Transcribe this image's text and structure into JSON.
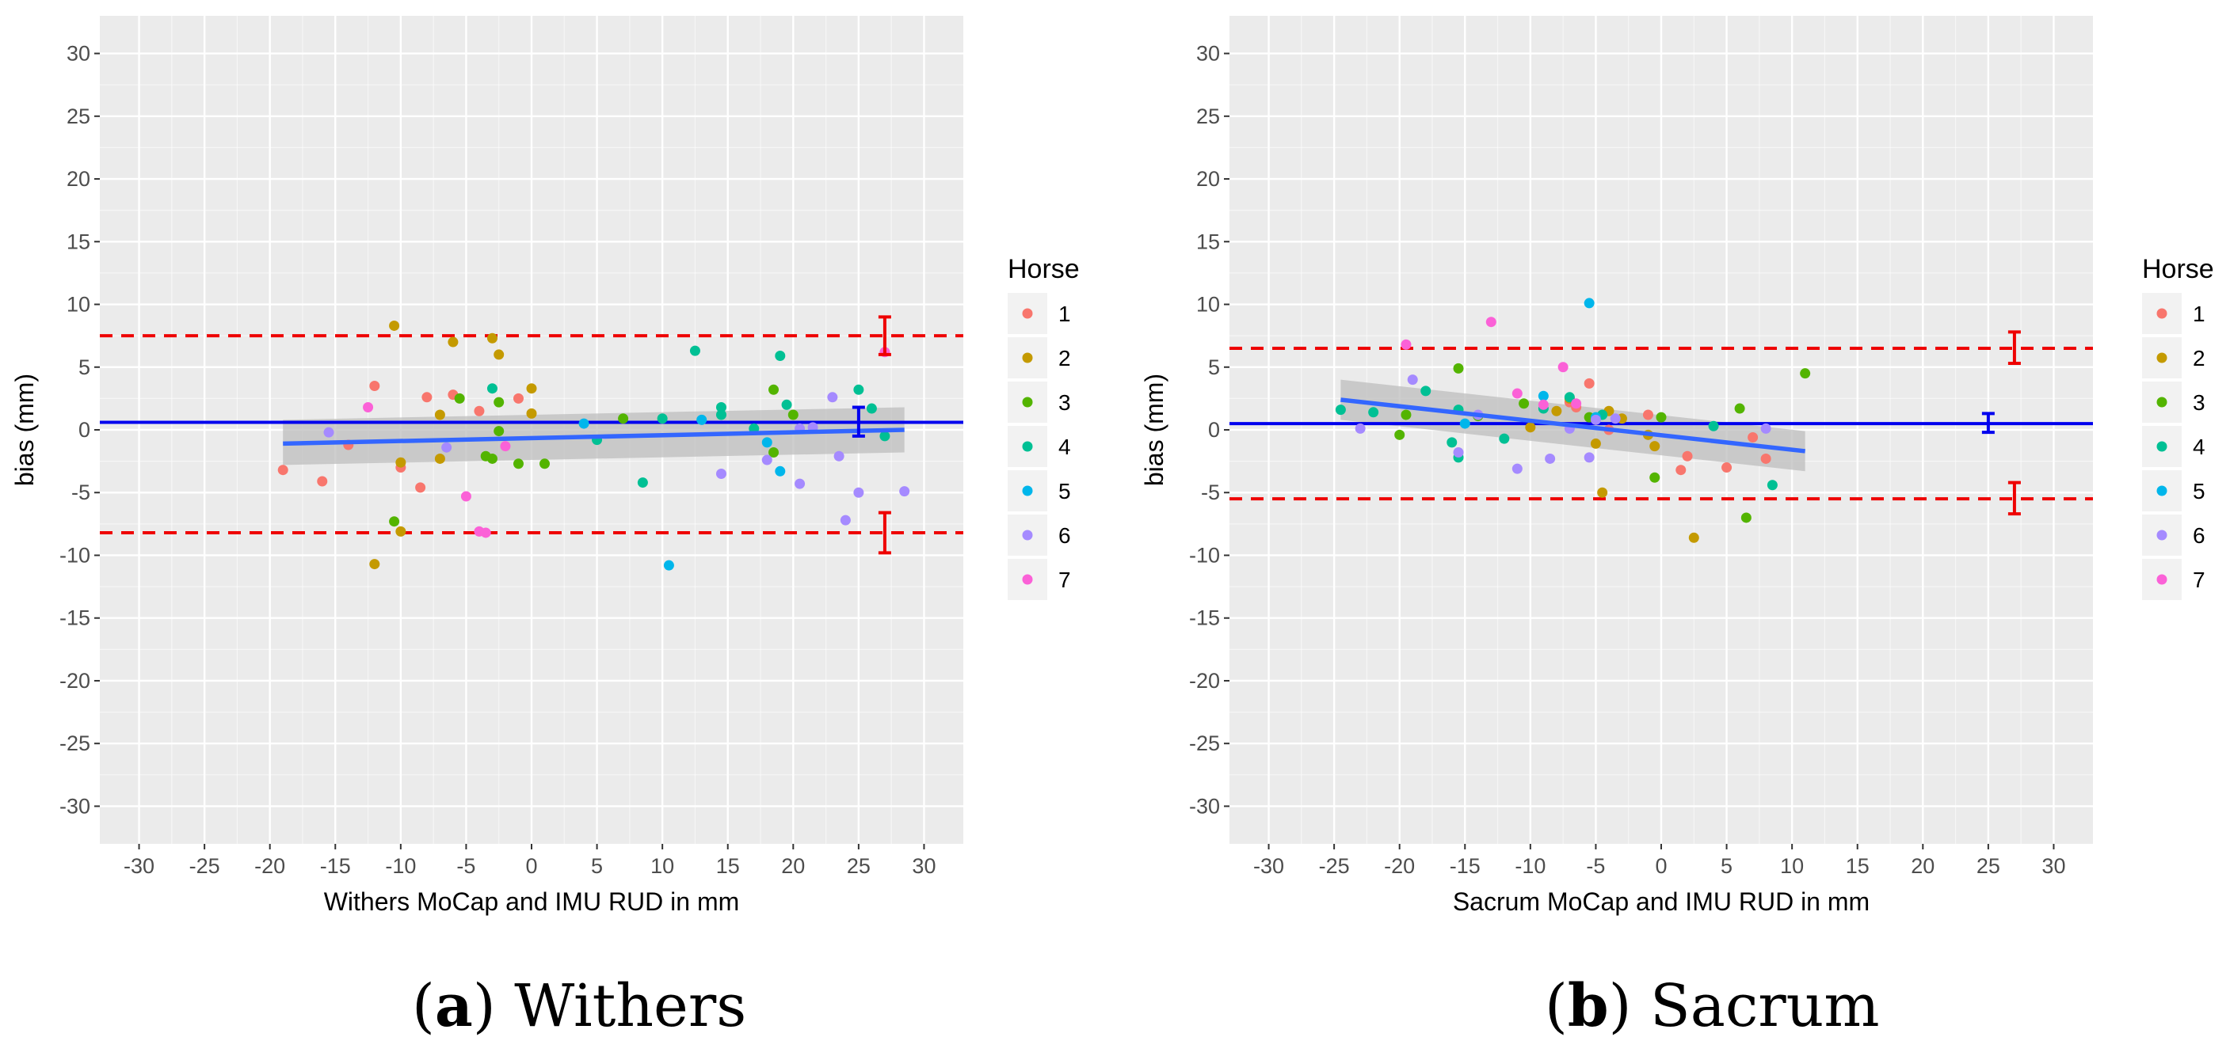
{
  "colors": {
    "panel_bg": "#ebebeb",
    "grid_major": "#ffffff",
    "bias_line": "#0000ee",
    "loa_line": "#ee0000",
    "regression_line": "#3366ff",
    "confidence_band": "#bdbdbd",
    "horse_palette": [
      "#F8766D",
      "#C49A00",
      "#53B400",
      "#00C094",
      "#00B6EB",
      "#A58AFF",
      "#FB61D7"
    ]
  },
  "captions": [
    {
      "letter": "a",
      "text": "Withers"
    },
    {
      "letter": "b",
      "text": "Sacrum"
    }
  ],
  "chart_data": [
    {
      "type": "scatter",
      "title": "",
      "xlabel": "Withers MoCap and IMU RUD in mm",
      "ylabel": "bias (mm)",
      "xlim": [
        -33,
        33
      ],
      "ylim": [
        -33,
        33
      ],
      "x_ticks": [
        -30,
        -25,
        -20,
        -15,
        -10,
        -5,
        0,
        5,
        10,
        15,
        20,
        25,
        30
      ],
      "y_ticks": [
        -30,
        -25,
        -20,
        -15,
        -10,
        -5,
        0,
        5,
        10,
        15,
        20,
        25,
        30
      ],
      "grid": true,
      "legend": {
        "title": "Horse",
        "position": "right",
        "entries": [
          "1",
          "2",
          "3",
          "4",
          "5",
          "6",
          "7"
        ]
      },
      "bias": 0.6,
      "bias_ci": [
        -0.5,
        1.8
      ],
      "loa_upper": 7.5,
      "loa_upper_ci": [
        6.0,
        9.0
      ],
      "loa_lower": -8.2,
      "loa_lower_ci": [
        -9.8,
        -6.6
      ],
      "ci_marker_x": [
        25,
        27
      ],
      "regression": {
        "x": [
          -19,
          28.5
        ],
        "y": [
          -1.1,
          0.0
        ],
        "band_upper": [
          0.8,
          1.8
        ],
        "band_lower": [
          -2.8,
          -1.8
        ]
      },
      "series": [
        {
          "name": "1",
          "points": [
            [
              -19,
              -3.2
            ],
            [
              -16,
              -4.1
            ],
            [
              -14,
              -1.2
            ],
            [
              -12,
              3.5
            ],
            [
              -10,
              -3.0
            ],
            [
              -8.5,
              -4.6
            ],
            [
              -8,
              2.6
            ],
            [
              -6,
              2.8
            ],
            [
              -4,
              1.5
            ],
            [
              -1,
              2.5
            ]
          ]
        },
        {
          "name": "2",
          "points": [
            [
              -12,
              -10.7
            ],
            [
              -10.5,
              8.3
            ],
            [
              -10,
              -8.1
            ],
            [
              -10,
              -2.6
            ],
            [
              -7,
              -2.3
            ],
            [
              -7,
              1.2
            ],
            [
              -6,
              7.0
            ],
            [
              -3,
              7.3
            ],
            [
              -2.5,
              6.0
            ],
            [
              0,
              1.3
            ],
            [
              0,
              3.3
            ]
          ]
        },
        {
          "name": "3",
          "points": [
            [
              -10.5,
              -7.3
            ],
            [
              -5.5,
              2.5
            ],
            [
              -3.5,
              -2.1
            ],
            [
              -3,
              -2.3
            ],
            [
              -2.5,
              2.2
            ],
            [
              -2.5,
              -0.1
            ],
            [
              -1,
              -2.7
            ],
            [
              1,
              -2.7
            ],
            [
              7,
              0.9
            ],
            [
              18.5,
              3.2
            ],
            [
              18.5,
              -1.8
            ],
            [
              20,
              1.2
            ]
          ]
        },
        {
          "name": "4",
          "points": [
            [
              -3,
              3.3
            ],
            [
              5,
              -0.8
            ],
            [
              8.5,
              -4.2
            ],
            [
              10,
              0.9
            ],
            [
              12.5,
              6.3
            ],
            [
              14.5,
              1.8
            ],
            [
              14.5,
              1.2
            ],
            [
              17,
              0.1
            ],
            [
              19,
              5.9
            ],
            [
              19.5,
              2.0
            ],
            [
              25,
              3.2
            ],
            [
              26,
              1.7
            ],
            [
              27,
              -0.5
            ]
          ]
        },
        {
          "name": "5",
          "points": [
            [
              4,
              0.5
            ],
            [
              10.5,
              -10.8
            ],
            [
              13,
              0.8
            ],
            [
              18,
              -1.0
            ],
            [
              19,
              -3.3
            ]
          ]
        },
        {
          "name": "6",
          "points": [
            [
              -15.5,
              -0.2
            ],
            [
              -6.5,
              -1.4
            ],
            [
              14.5,
              -3.5
            ],
            [
              18,
              -2.4
            ],
            [
              20.5,
              0.1
            ],
            [
              20.5,
              -4.3
            ],
            [
              23,
              2.6
            ],
            [
              23.5,
              -2.1
            ],
            [
              24,
              -7.2
            ],
            [
              25,
              -5.0
            ],
            [
              28.5,
              -4.9
            ],
            [
              21.5,
              0.2
            ]
          ]
        },
        {
          "name": "7",
          "points": [
            [
              -12.5,
              1.8
            ],
            [
              -5,
              -5.3
            ],
            [
              -4,
              -8.1
            ],
            [
              -3.5,
              -8.2
            ],
            [
              -2,
              -1.3
            ],
            [
              27,
              6.2
            ]
          ]
        }
      ]
    },
    {
      "type": "scatter",
      "title": "",
      "xlabel": "Sacrum MoCap and IMU RUD in mm",
      "ylabel": "bias (mm)",
      "xlim": [
        -33,
        33
      ],
      "ylim": [
        -33,
        33
      ],
      "x_ticks": [
        -30,
        -25,
        -20,
        -15,
        -10,
        -5,
        0,
        5,
        10,
        15,
        20,
        25,
        30
      ],
      "y_ticks": [
        -30,
        -25,
        -20,
        -15,
        -10,
        -5,
        0,
        5,
        10,
        15,
        20,
        25,
        30
      ],
      "grid": true,
      "legend": {
        "title": "Horse",
        "position": "right",
        "entries": [
          "1",
          "2",
          "3",
          "4",
          "5",
          "6",
          "7"
        ]
      },
      "bias": 0.5,
      "bias_ci": [
        -0.2,
        1.3
      ],
      "loa_upper": 6.5,
      "loa_upper_ci": [
        5.3,
        7.8
      ],
      "loa_lower": -5.5,
      "loa_lower_ci": [
        -6.7,
        -4.2
      ],
      "ci_marker_x": [
        25,
        27
      ],
      "regression": {
        "x": [
          -24.5,
          11
        ],
        "y": [
          2.4,
          -1.7
        ],
        "band_upper": [
          4.0,
          -0.1
        ],
        "band_lower": [
          0.8,
          -3.3
        ]
      },
      "series": [
        {
          "name": "1",
          "points": [
            [
              -7,
              2.2
            ],
            [
              -6.5,
              1.8
            ],
            [
              -5.5,
              3.7
            ],
            [
              -4,
              0.0
            ],
            [
              -1,
              1.2
            ],
            [
              1.5,
              -3.2
            ],
            [
              2,
              -2.1
            ],
            [
              5,
              -3.0
            ],
            [
              7,
              -0.6
            ],
            [
              8,
              -2.3
            ]
          ]
        },
        {
          "name": "2",
          "points": [
            [
              -10,
              0.2
            ],
            [
              -8,
              1.5
            ],
            [
              -7,
              2.5
            ],
            [
              -5,
              -1.1
            ],
            [
              -4.5,
              -5.0
            ],
            [
              -4,
              1.5
            ],
            [
              -3,
              0.9
            ],
            [
              -1,
              -0.4
            ],
            [
              -0.5,
              -1.3
            ],
            [
              2.5,
              -8.6
            ]
          ]
        },
        {
          "name": "3",
          "points": [
            [
              -20,
              -0.4
            ],
            [
              -19.5,
              1.2
            ],
            [
              -15.5,
              4.9
            ],
            [
              -14,
              1.1
            ],
            [
              -10.5,
              2.1
            ],
            [
              -5.5,
              1.0
            ],
            [
              -0.5,
              -3.8
            ],
            [
              0,
              1.0
            ],
            [
              6,
              1.7
            ],
            [
              6.5,
              -7.0
            ],
            [
              11,
              4.5
            ]
          ]
        },
        {
          "name": "4",
          "points": [
            [
              -24.5,
              1.6
            ],
            [
              -22,
              1.4
            ],
            [
              -18,
              3.1
            ],
            [
              -16,
              -1.0
            ],
            [
              -15.5,
              -2.2
            ],
            [
              -15.5,
              1.6
            ],
            [
              -12,
              -0.7
            ],
            [
              -9,
              1.7
            ],
            [
              -7,
              2.6
            ],
            [
              -4.5,
              1.2
            ],
            [
              4,
              0.3
            ],
            [
              8.5,
              -4.4
            ]
          ]
        },
        {
          "name": "5",
          "points": [
            [
              -15,
              0.5
            ],
            [
              -9,
              2.7
            ],
            [
              -5.5,
              10.1
            ],
            [
              -5,
              1.0
            ]
          ]
        },
        {
          "name": "6",
          "points": [
            [
              -23,
              0.1
            ],
            [
              -19,
              4.0
            ],
            [
              -15.5,
              -1.8
            ],
            [
              -14,
              1.2
            ],
            [
              -11,
              -3.1
            ],
            [
              -8.5,
              -2.3
            ],
            [
              -7,
              0.1
            ],
            [
              -5.5,
              -2.2
            ],
            [
              -5,
              0.8
            ],
            [
              -3.5,
              0.9
            ],
            [
              8,
              0.1
            ]
          ]
        },
        {
          "name": "7",
          "points": [
            [
              -19.5,
              6.8
            ],
            [
              -13,
              8.6
            ],
            [
              -11,
              2.9
            ],
            [
              -9,
              2.0
            ],
            [
              -7.5,
              5.0
            ],
            [
              -6.5,
              2.1
            ]
          ]
        }
      ]
    }
  ]
}
